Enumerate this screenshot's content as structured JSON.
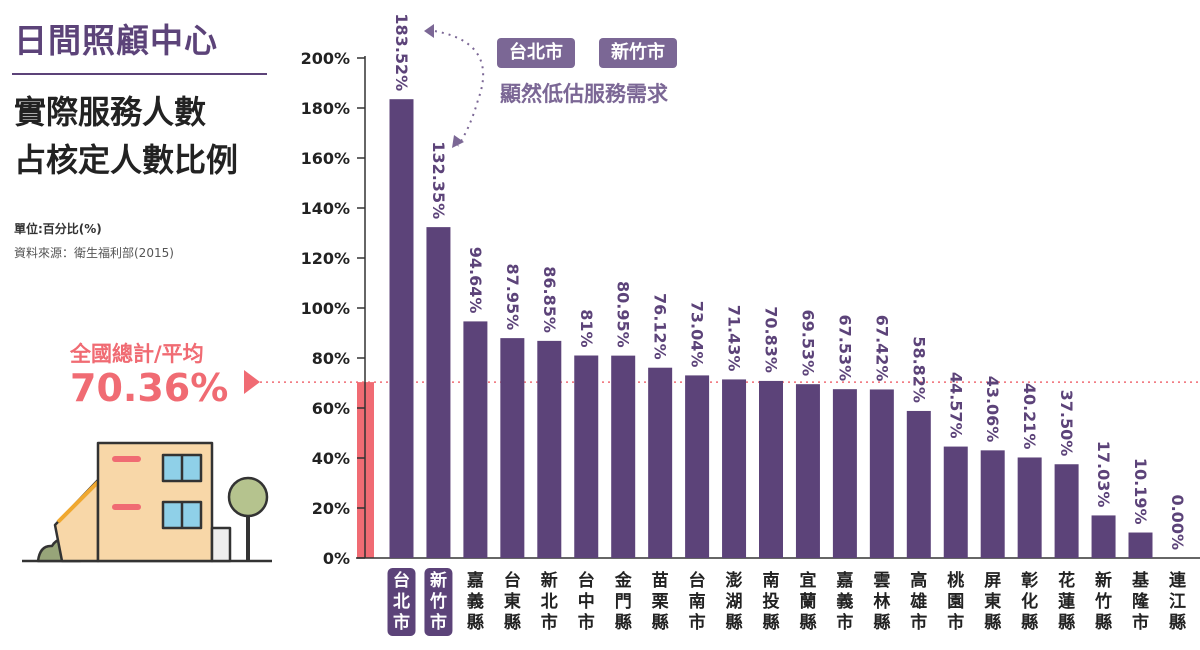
{
  "topic": "日間照顧中心",
  "title_line1": "實際服務人數",
  "title_line2": "占核定人數比例",
  "unit": "單位:百分比(%)",
  "source": "資料來源：衛生福利部(2015)",
  "average": {
    "label": "全國總計/平均",
    "value_text": "70.36%",
    "value": 70.36
  },
  "callout": {
    "tags": [
      "台北市",
      "新竹市"
    ],
    "note": "顯然低估服務需求"
  },
  "colors": {
    "bar": "#5c4379",
    "highlight_bg": "#5c4379",
    "average": "#f06b73",
    "callout": "#7b6795"
  },
  "chart_data": {
    "type": "bar",
    "title": "",
    "xlabel": "",
    "ylabel": "",
    "ylim": [
      0,
      200
    ],
    "yticks": [
      "0%",
      "20%",
      "40%",
      "60%",
      "80%",
      "100%",
      "120%",
      "140%",
      "160%",
      "180%",
      "200%"
    ],
    "categories": [
      "台北市",
      "新竹市",
      "嘉義縣",
      "台東縣",
      "新北市",
      "台中市",
      "金門縣",
      "苗栗縣",
      "台南市",
      "澎湖縣",
      "南投縣",
      "宜蘭縣",
      "嘉義市",
      "雲林縣",
      "高雄市",
      "桃園市",
      "屏東縣",
      "彰化縣",
      "花蓮縣",
      "新竹縣",
      "基隆市",
      "連江縣"
    ],
    "values": [
      183.52,
      132.35,
      94.64,
      87.95,
      86.85,
      81,
      80.95,
      76.12,
      73.04,
      71.43,
      70.83,
      69.53,
      67.53,
      67.42,
      58.82,
      44.57,
      43.06,
      40.21,
      37.5,
      17.03,
      10.19,
      0.0
    ],
    "labels": [
      "183.52%",
      "132.35%",
      "94.64%",
      "87.95%",
      "86.85%",
      "81%",
      "80.95%",
      "76.12%",
      "73.04%",
      "71.43%",
      "70.83%",
      "69.53%",
      "67.53%",
      "67.42%",
      "58.82%",
      "44.57%",
      "43.06%",
      "40.21%",
      "37.50%",
      "17.03%",
      "10.19%",
      "0.00%"
    ],
    "highlighted": [
      "台北市",
      "新竹市"
    ],
    "grid": false
  }
}
